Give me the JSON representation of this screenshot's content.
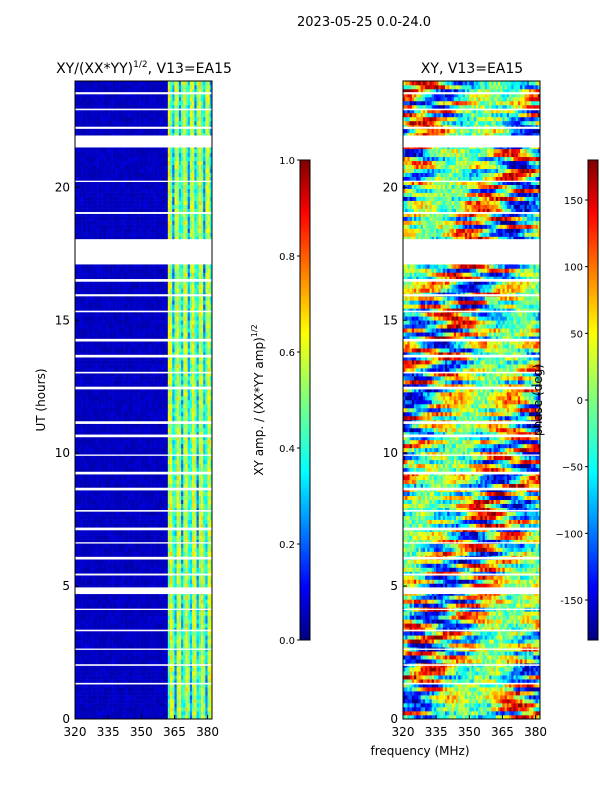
{
  "suptitle": "2023-05-25 0.0-24.0",
  "chart_data": [
    {
      "type": "heatmap",
      "title": "XY/(XX*YY)",
      "title_sup": "1/2",
      "title_suffix": ", V13=EA15",
      "xlabel": "",
      "ylabel": "UT (hours)",
      "xlim": [
        320,
        382
      ],
      "ylim": [
        0,
        24
      ],
      "xticks": [
        "320",
        "335",
        "350",
        "365",
        "380"
      ],
      "yticks": [
        "0",
        "5",
        "10",
        "15",
        "20"
      ],
      "colorbar": {
        "label": "XY amp. / (XX*YY amp)",
        "label_sup": "1/2",
        "range": [
          0.0,
          1.0
        ],
        "ticks": [
          "0.0",
          "0.2",
          "0.4",
          "0.6",
          "0.8",
          "1.0"
        ],
        "colormap": [
          "#00007f",
          "#0000ff",
          "#007fff",
          "#00ffff",
          "#7fff7f",
          "#ffff00",
          "#ff7f00",
          "#ff0000",
          "#7f0000"
        ]
      },
      "data_gaps_hours": [
        [
          18.05,
          18.35
        ],
        [
          18.4,
          18.5
        ],
        [
          21.55,
          21.95
        ],
        [
          17.1,
          18.05
        ]
      ],
      "notes": "Mostly low amplitude (~0.05) below 362 MHz; bright vertical channels (0.4-0.7) between 362 and 382 MHz"
    },
    {
      "type": "heatmap",
      "title": "XY, V13=EA15",
      "xlabel": "frequency (MHz)",
      "ylabel": "",
      "xlim": [
        320,
        382
      ],
      "ylim": [
        0,
        24
      ],
      "xticks": [
        "320",
        "335",
        "350",
        "365",
        "380"
      ],
      "yticks": [
        "0",
        "5",
        "10",
        "15",
        "20"
      ],
      "colorbar": {
        "label": "phase (deg)",
        "range": [
          -180,
          180
        ],
        "ticks": [
          "-150",
          "−100",
          "−50",
          "0",
          "50",
          "100",
          "150"
        ],
        "tick_values": [
          -150,
          -100,
          -50,
          0,
          50,
          100,
          150
        ],
        "colormap": [
          "#00007f",
          "#0000ff",
          "#007fff",
          "#00ffff",
          "#7fff7f",
          "#ffff00",
          "#ff7f00",
          "#ff0000",
          "#7f0000"
        ]
      },
      "notes": "Phase varies widely across band and time; mix of all colours"
    }
  ]
}
